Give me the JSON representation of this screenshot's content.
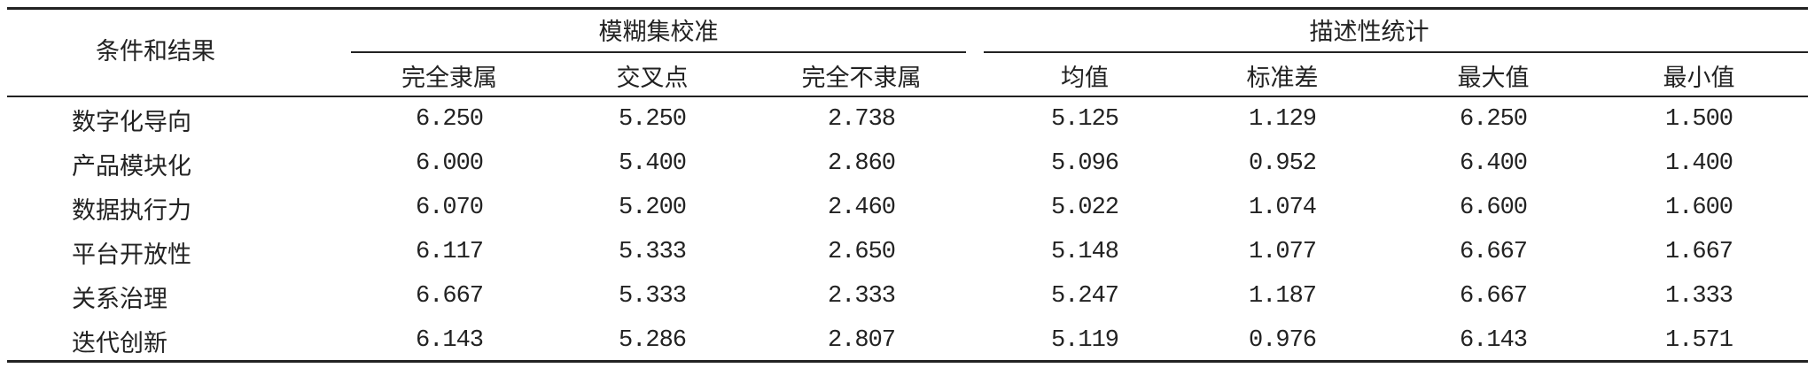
{
  "table": {
    "corner_header": "条件和结果",
    "groups": [
      {
        "label": "模糊集校准",
        "columns": [
          "完全隶属",
          "交叉点",
          "完全不隶属"
        ]
      },
      {
        "label": "描述性统计",
        "columns": [
          "均值",
          "标准差",
          "最大值",
          "最小值"
        ]
      }
    ],
    "rows": [
      {
        "label": "数字化导向",
        "values": [
          "6.250",
          "5.250",
          "2.738",
          "5.125",
          "1.129",
          "6.250",
          "1.500"
        ]
      },
      {
        "label": "产品模块化",
        "values": [
          "6.000",
          "5.400",
          "2.860",
          "5.096",
          "0.952",
          "6.400",
          "1.400"
        ]
      },
      {
        "label": "数据执行力",
        "values": [
          "6.070",
          "5.200",
          "2.460",
          "5.022",
          "1.074",
          "6.600",
          "1.600"
        ]
      },
      {
        "label": "平台开放性",
        "values": [
          "6.117",
          "5.333",
          "2.650",
          "5.148",
          "1.077",
          "6.667",
          "1.667"
        ]
      },
      {
        "label": "关系治理",
        "values": [
          "6.667",
          "5.333",
          "2.333",
          "5.247",
          "1.187",
          "6.667",
          "1.333"
        ]
      },
      {
        "label": "迭代创新",
        "values": [
          "6.143",
          "5.286",
          "2.807",
          "5.119",
          "0.976",
          "6.143",
          "1.571"
        ]
      }
    ]
  }
}
